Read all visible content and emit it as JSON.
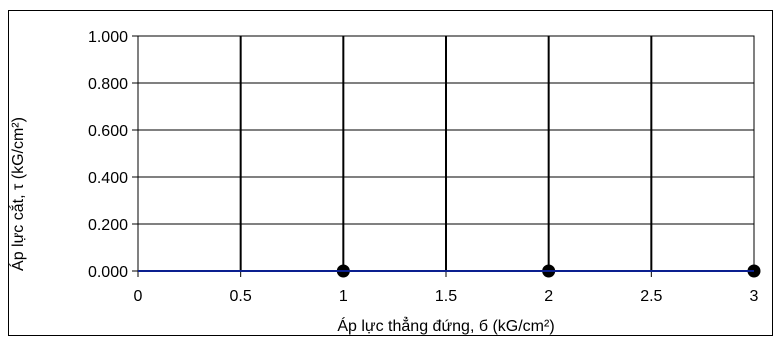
{
  "chart_data": {
    "type": "line",
    "title": "",
    "xlabel": "Áp lực thẳng đứng, б (kG/cm²)",
    "ylabel": "Áp lực cắt, τ (kG/cm²)",
    "xlim": [
      0,
      3
    ],
    "ylim": [
      0,
      1
    ],
    "x_ticks": [
      "0",
      "0.5",
      "1",
      "1.5",
      "2",
      "2.5",
      "3"
    ],
    "y_ticks": [
      "0.000",
      "0.200",
      "0.400",
      "0.600",
      "0.800",
      "1.000"
    ],
    "grid": true,
    "legend": "none",
    "series": [
      {
        "x": [
          1,
          2,
          3
        ],
        "y": [
          0,
          0,
          0
        ],
        "style": "markers",
        "color": "#000000"
      },
      {
        "x": [
          0,
          3
        ],
        "y": [
          0,
          0
        ],
        "style": "line",
        "color": "#0a1f8f"
      }
    ]
  }
}
